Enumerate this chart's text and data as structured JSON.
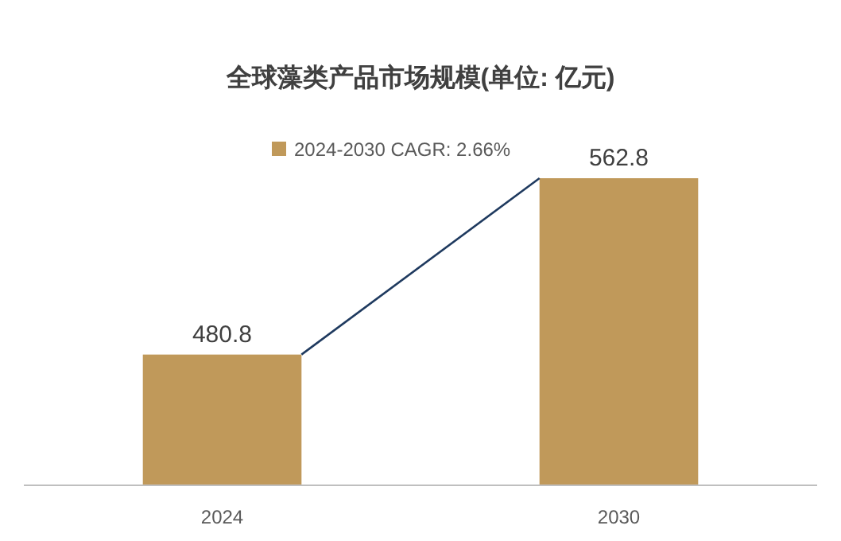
{
  "chart_data": {
    "type": "bar",
    "title": "全球藻类产品市场规模(单位: 亿元)",
    "categories": [
      "2024",
      "2030"
    ],
    "series": [
      {
        "name": "2024-2030 CAGR: 2.66%",
        "color": "#c0995a",
        "values": [
          480.8,
          562.8
        ]
      }
    ],
    "ylim": [
      420,
      562.8
    ],
    "data_labels": true,
    "legend": "top",
    "grid": false
  }
}
